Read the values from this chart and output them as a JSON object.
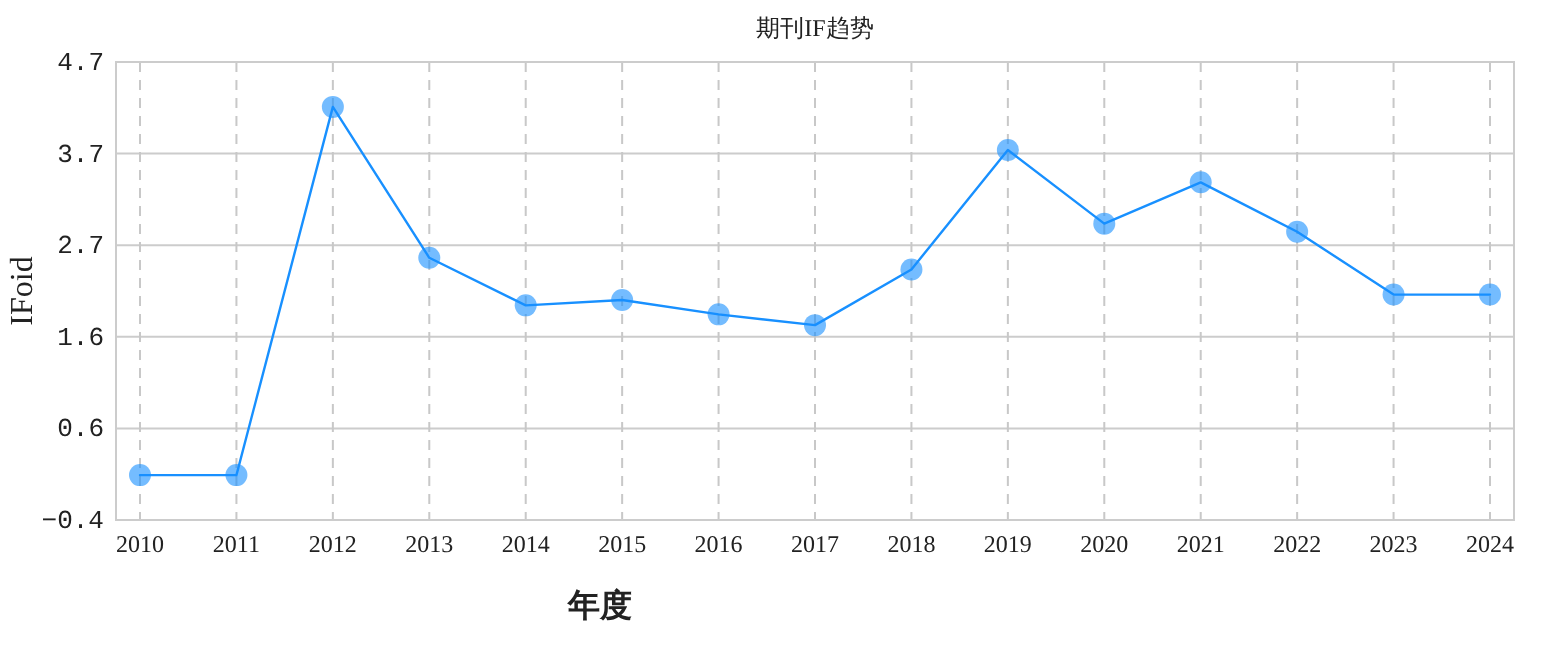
{
  "chart_data": {
    "type": "line",
    "title": "期刊IF趋势",
    "xlabel": "年度",
    "ylabel": "IFoid",
    "categories": [
      "2010",
      "2011",
      "2012",
      "2013",
      "2014",
      "2015",
      "2016",
      "2017",
      "2018",
      "2019",
      "2020",
      "2021",
      "2022",
      "2023",
      "2024"
    ],
    "series": [
      {
        "color": "#1890ff",
        "values": [
          0.1,
          0.1,
          4.2,
          2.52,
          1.99,
          2.05,
          1.89,
          1.77,
          2.39,
          3.72,
          2.9,
          3.36,
          2.81,
          2.11,
          2.11
        ]
      }
    ],
    "ylim": [
      -0.4,
      4.7
    ],
    "yticks": [
      -0.4,
      {
        "value": 0.62,
        "label": "0.6"
      },
      {
        "value": 1.64,
        "label": "1.6"
      },
      {
        "value": 2.66,
        "label": "2.7"
      },
      {
        "value": 3.68,
        "label": "3.7"
      },
      4.7
    ],
    "grid": true,
    "marker": "circle",
    "line_style": "solid"
  }
}
